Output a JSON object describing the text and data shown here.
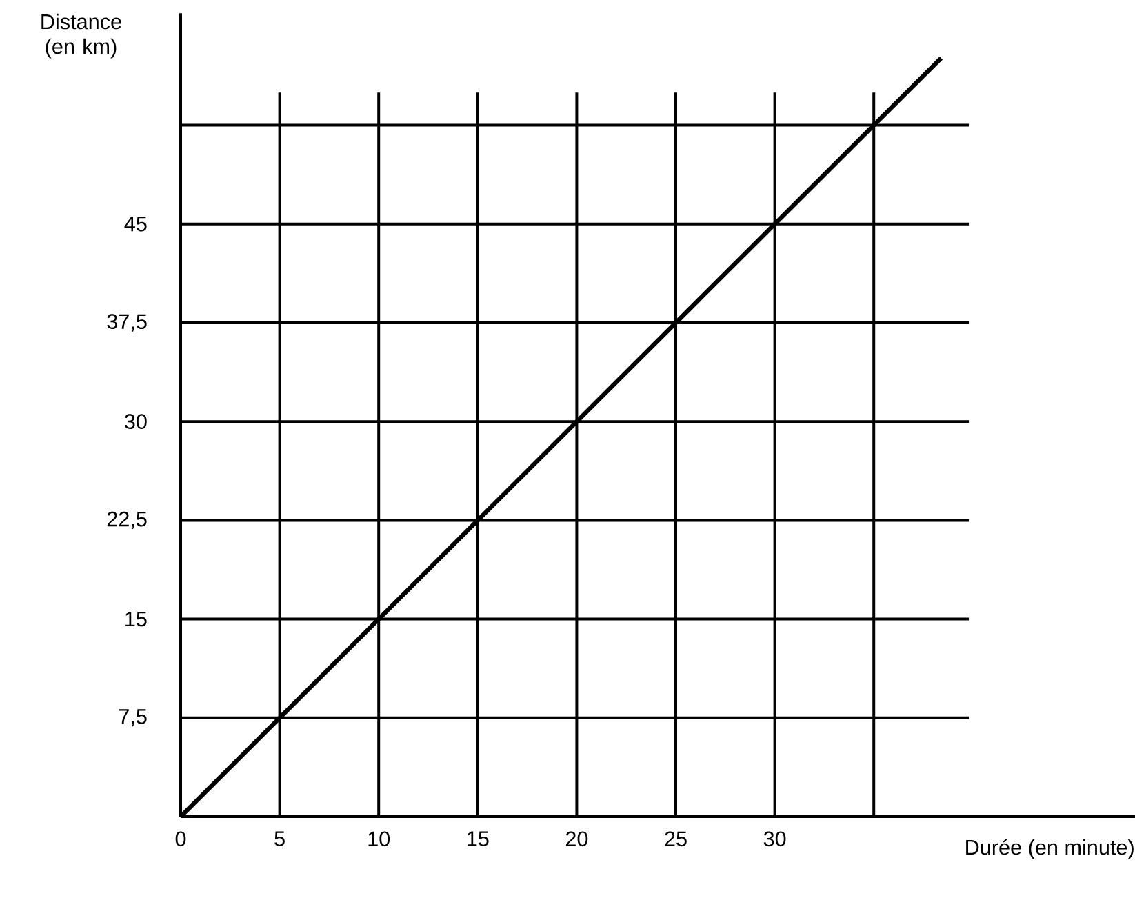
{
  "chart_data": {
    "type": "line",
    "xlabel": "Durée (en minute)",
    "ylabel": "Distance (en km)",
    "x": [
      0,
      38.4
    ],
    "values": [
      0,
      57.6
    ],
    "color": "#000000",
    "xlim": [
      0,
      48.2
    ],
    "ylim": [
      0,
      61
    ],
    "xticks": [
      0,
      5,
      10,
      15,
      20,
      25,
      30,
      {
        "value": 35,
        "label": null
      }
    ],
    "yticks": [
      {
        "value": 7.5,
        "label": "7,5"
      },
      15,
      {
        "value": 22.5,
        "label": "22,5"
      },
      30,
      {
        "value": 37.5,
        "label": "37,5"
      },
      45,
      {
        "value": 52.5,
        "label": null
      }
    ],
    "grid": true,
    "marker": "none",
    "line_style": "solid"
  }
}
